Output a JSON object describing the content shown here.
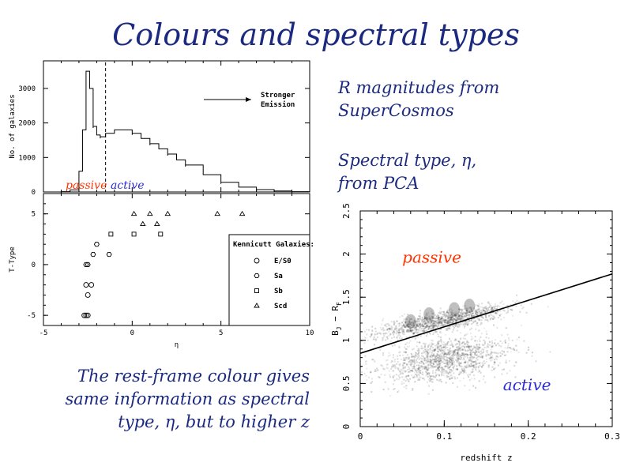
{
  "title": "Colours and spectral types",
  "notes": {
    "r_mag_line1": "R magnitudes from",
    "r_mag_line2": "SuperCosmos",
    "spec_line1": "Spectral type, η,",
    "spec_line2": "from PCA",
    "rest_line1": "The rest-frame colour gives",
    "rest_line2": "same information as spectral",
    "rest_line3": "type, η, but to higher z"
  },
  "colors": {
    "text": "#1b2a80",
    "passive": "#ff3300",
    "active": "#2b2bd6"
  },
  "chart_data": [
    {
      "type": "line",
      "ylabel": "No. of galaxies",
      "xlim": [
        -5,
        10
      ],
      "ylim": [
        0,
        3800
      ],
      "yticks": [
        0,
        1000,
        2000,
        3000
      ],
      "x": [
        -5,
        -4,
        -3.5,
        -3,
        -2.8,
        -2.6,
        -2.4,
        -2.2,
        -2.0,
        -1.8,
        -1.5,
        -1.0,
        -0.5,
        0,
        0.5,
        1,
        1.5,
        2,
        2.5,
        3,
        4,
        5,
        6,
        7,
        8,
        9,
        10
      ],
      "y": [
        0,
        10,
        60,
        600,
        1800,
        3500,
        3000,
        1900,
        1650,
        1600,
        1700,
        1800,
        1800,
        1700,
        1550,
        1400,
        1250,
        1100,
        930,
        780,
        500,
        280,
        140,
        70,
        30,
        10,
        0
      ],
      "dividers": [
        -1.5
      ],
      "annotation_line1": "Stronger",
      "annotation_line2": "Emission",
      "passive_label": "passive",
      "active_label": "active"
    },
    {
      "type": "scatter",
      "xlabel": "η",
      "ylabel": "T-Type",
      "xlim": [
        -5,
        10
      ],
      "ylim": [
        -6,
        7
      ],
      "xticks": [
        -5,
        0,
        5,
        10
      ],
      "yticks": [
        -5,
        0,
        5
      ],
      "legend_title": "Kennicutt Galaxies:",
      "legend_position": "bottom-right",
      "series": [
        {
          "name": "E/S0",
          "marker": "circle",
          "points": [
            [
              -2.7,
              -5
            ],
            [
              -2.6,
              -5
            ],
            [
              -2.5,
              -5
            ],
            [
              -2.6,
              -2
            ],
            [
              -2.3,
              -2
            ],
            [
              -2.5,
              -3
            ]
          ]
        },
        {
          "name": "Sa",
          "marker": "hexagon",
          "points": [
            [
              -2.6,
              0
            ],
            [
              -2.5,
              0
            ],
            [
              -2.2,
              1
            ],
            [
              -2.0,
              2
            ],
            [
              -1.3,
              1
            ]
          ]
        },
        {
          "name": "Sb",
          "marker": "square",
          "points": [
            [
              -1.2,
              3
            ],
            [
              0.1,
              3
            ],
            [
              1.6,
              3
            ]
          ]
        },
        {
          "name": "Scd",
          "marker": "triangle",
          "points": [
            [
              0.1,
              5
            ],
            [
              1.0,
              5
            ],
            [
              2.0,
              5
            ],
            [
              4.8,
              5
            ],
            [
              6.2,
              5
            ],
            [
              0.6,
              4
            ],
            [
              1.4,
              4
            ]
          ]
        }
      ]
    },
    {
      "type": "scatter",
      "xlabel": "redshift z",
      "ylabel_main": "B",
      "ylabel_sub1": "J",
      "ylabel_mid": " − R",
      "ylabel_sub2": "F",
      "xlim": [
        0,
        0.3
      ],
      "ylim": [
        0,
        2.5
      ],
      "xticks": [
        0,
        0.1,
        0.2,
        0.3
      ],
      "yticks": [
        0,
        0.5,
        1,
        1.5,
        2,
        2.5
      ],
      "divider_line": [
        [
          0,
          0.85
        ],
        [
          0.3,
          1.77
        ]
      ],
      "passive_label": "passive",
      "active_label": "active"
    }
  ]
}
